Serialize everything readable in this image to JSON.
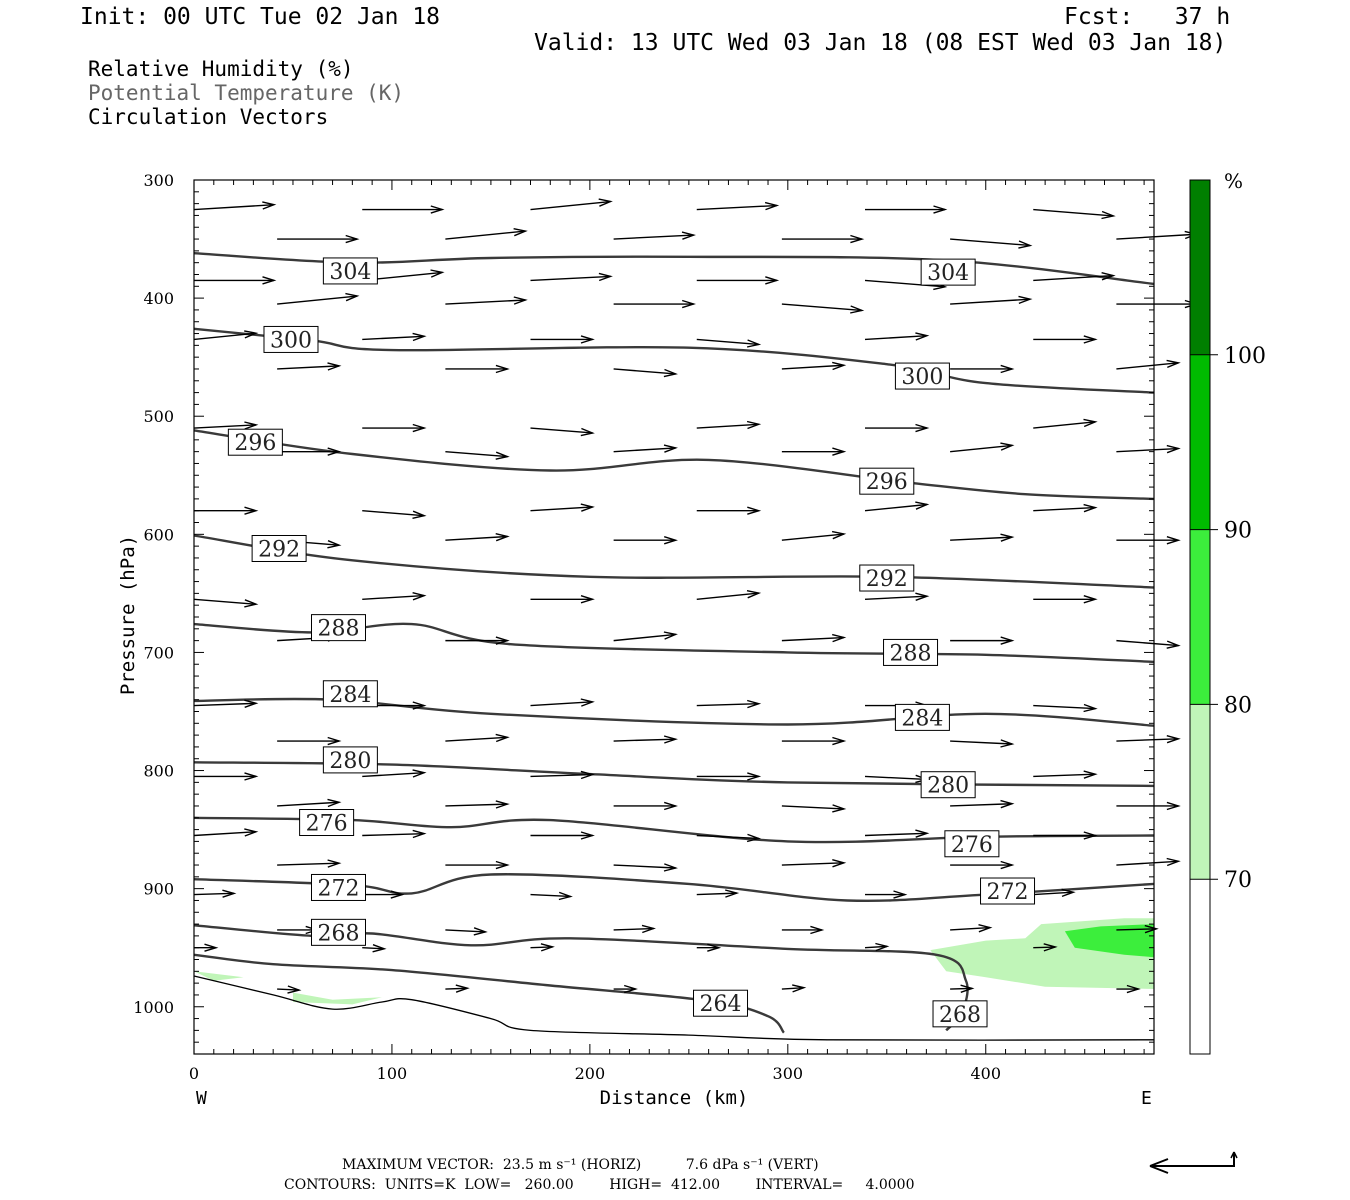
{
  "header": {
    "init": "Init: 00 UTC Tue 02 Jan 18",
    "fcst": "Fcst:   37 h",
    "valid": "Valid: 13 UTC Wed 03 Jan 18 (08 EST Wed 03 Jan 18)"
  },
  "legend": {
    "items": [
      "Relative Humidity (%)",
      "Potential Temperature (K)",
      "Circulation Vectors"
    ]
  },
  "footer": {
    "max_vector": "MAXIMUM VECTOR:  23.5 m s⁻¹ (HORIZ)          7.6 dPa s⁻¹ (VERT)",
    "contours": "CONTOURS:  UNITS=K  LOW=   260.00        HIGH=  412.00        INTERVAL=     4.0000"
  },
  "colorbar": {
    "unit": "%",
    "levels": [
      70,
      80,
      90,
      100
    ],
    "colors": [
      "#ffffff",
      "#c0f5b8",
      "#3cee3c",
      "#00bb00",
      "#007f00"
    ]
  },
  "chart_data": {
    "type": "cross-section",
    "xlabel": "Distance (km)",
    "ylabel": "Pressure (hPa)",
    "xlim": [
      0,
      485
    ],
    "ylim": [
      300,
      1040
    ],
    "x_ticks": [
      0,
      100,
      200,
      300,
      400
    ],
    "y_ticks": [
      300,
      400,
      500,
      600,
      700,
      800,
      900,
      1000
    ],
    "x_end_labels": [
      "W",
      "E"
    ],
    "theta_contours": [
      {
        "value": 304,
        "points": [
          [
            0,
            362
          ],
          [
            80,
            370
          ],
          [
            150,
            366
          ],
          [
            250,
            365
          ],
          [
            380,
            368
          ],
          [
            485,
            388
          ]
        ]
      },
      {
        "value": 300,
        "points": [
          [
            0,
            426
          ],
          [
            60,
            436
          ],
          [
            100,
            444
          ],
          [
            250,
            442
          ],
          [
            350,
            456
          ],
          [
            400,
            472
          ],
          [
            485,
            480
          ]
        ]
      },
      {
        "value": 296,
        "points": [
          [
            0,
            512
          ],
          [
            80,
            532
          ],
          [
            180,
            546
          ],
          [
            260,
            537
          ],
          [
            360,
            556
          ],
          [
            420,
            566
          ],
          [
            485,
            570
          ]
        ]
      },
      {
        "value": 292,
        "points": [
          [
            0,
            601
          ],
          [
            80,
            622
          ],
          [
            200,
            636
          ],
          [
            350,
            636
          ],
          [
            485,
            645
          ]
        ]
      },
      {
        "value": 288,
        "points": [
          [
            0,
            676
          ],
          [
            60,
            683
          ],
          [
            110,
            676
          ],
          [
            160,
            693
          ],
          [
            300,
            700
          ],
          [
            400,
            702
          ],
          [
            485,
            708
          ]
        ]
      },
      {
        "value": 284,
        "points": [
          [
            0,
            741
          ],
          [
            70,
            740
          ],
          [
            150,
            752
          ],
          [
            300,
            761
          ],
          [
            400,
            752
          ],
          [
            485,
            762
          ]
        ]
      },
      {
        "value": 280,
        "points": [
          [
            0,
            793
          ],
          [
            100,
            795
          ],
          [
            200,
            803
          ],
          [
            300,
            810
          ],
          [
            485,
            813
          ]
        ]
      },
      {
        "value": 276,
        "points": [
          [
            0,
            840
          ],
          [
            80,
            842
          ],
          [
            130,
            848
          ],
          [
            180,
            842
          ],
          [
            300,
            860
          ],
          [
            400,
            856
          ],
          [
            485,
            855
          ]
        ]
      },
      {
        "value": 272,
        "points": [
          [
            0,
            892
          ],
          [
            80,
            897
          ],
          [
            110,
            904
          ],
          [
            150,
            888
          ],
          [
            250,
            896
          ],
          [
            330,
            910
          ],
          [
            400,
            905
          ],
          [
            485,
            896
          ]
        ]
      },
      {
        "value": 268,
        "points": [
          [
            0,
            931
          ],
          [
            60,
            940
          ],
          [
            90,
            938
          ],
          [
            140,
            948
          ],
          [
            190,
            942
          ],
          [
            300,
            951
          ],
          [
            375,
            956
          ],
          [
            390,
            978
          ],
          [
            388,
            1005
          ],
          [
            380,
            1020
          ]
        ]
      },
      {
        "value": 264,
        "points": [
          [
            0,
            956
          ],
          [
            40,
            964
          ],
          [
            100,
            969
          ],
          [
            180,
            982
          ],
          [
            260,
            995
          ],
          [
            290,
            1008
          ],
          [
            298,
            1022
          ]
        ]
      },
      {
        "value": 260,
        "points": [
          [
            0,
            974
          ],
          [
            40,
            990
          ],
          [
            70,
            1002
          ],
          [
            95,
            996
          ],
          [
            110,
            994
          ],
          [
            150,
            1010
          ],
          [
            170,
            1020
          ],
          [
            250,
            1024
          ],
          [
            320,
            1028
          ],
          [
            485,
            1028
          ]
        ]
      }
    ],
    "contour_labels": [
      {
        "value": "304",
        "x": 79,
        "p": 377
      },
      {
        "value": "304",
        "x": 381,
        "p": 378
      },
      {
        "value": "300",
        "x": 49,
        "p": 435
      },
      {
        "value": "300",
        "x": 368,
        "p": 466
      },
      {
        "value": "296",
        "x": 31,
        "p": 522
      },
      {
        "value": "296",
        "x": 350,
        "p": 555
      },
      {
        "value": "292",
        "x": 43,
        "p": 612
      },
      {
        "value": "292",
        "x": 350,
        "p": 637
      },
      {
        "value": "288",
        "x": 73,
        "p": 679
      },
      {
        "value": "288",
        "x": 362,
        "p": 700
      },
      {
        "value": "284",
        "x": 79,
        "p": 735
      },
      {
        "value": "284",
        "x": 368,
        "p": 755
      },
      {
        "value": "280",
        "x": 79,
        "p": 791
      },
      {
        "value": "280",
        "x": 381,
        "p": 812
      },
      {
        "value": "276",
        "x": 67,
        "p": 844
      },
      {
        "value": "276",
        "x": 393,
        "p": 862
      },
      {
        "value": "272",
        "x": 73,
        "p": 899
      },
      {
        "value": "272",
        "x": 411,
        "p": 902
      },
      {
        "value": "268",
        "x": 73,
        "p": 937
      },
      {
        "value": "268",
        "x": 387,
        "p": 1006
      },
      {
        "value": "264",
        "x": 266,
        "p": 997
      }
    ],
    "rh_regions": [
      {
        "level": "70-80",
        "points": [
          [
            372,
            952
          ],
          [
            400,
            944
          ],
          [
            420,
            942
          ],
          [
            428,
            930
          ],
          [
            470,
            925
          ],
          [
            485,
            925
          ],
          [
            485,
            985
          ],
          [
            430,
            983
          ],
          [
            400,
            975
          ],
          [
            380,
            970
          ]
        ]
      },
      {
        "level": "80-90",
        "points": [
          [
            440,
            936
          ],
          [
            458,
            932
          ],
          [
            485,
            930
          ],
          [
            485,
            958
          ],
          [
            470,
            956
          ],
          [
            445,
            950
          ]
        ]
      },
      {
        "level": "70-80",
        "points": [
          [
            50,
            988
          ],
          [
            70,
            994
          ],
          [
            95,
            992
          ],
          [
            80,
            998
          ],
          [
            50,
            996
          ]
        ]
      },
      {
        "level": "70-80",
        "points": [
          [
            0,
            970
          ],
          [
            25,
            975
          ],
          [
            10,
            978
          ]
        ]
      }
    ],
    "vector_rows": [
      325,
      350,
      385,
      405,
      435,
      460,
      510,
      530,
      580,
      605,
      655,
      690,
      745,
      775,
      805,
      830,
      855,
      880,
      905,
      935,
      950,
      985
    ],
    "vector_columns": [
      0,
      42,
      85,
      127,
      170,
      212,
      254,
      297,
      339,
      382,
      424,
      466
    ],
    "max_vector": {
      "horizontal_m_s": 23.5,
      "vertical_dPa_s": 7.6
    }
  }
}
